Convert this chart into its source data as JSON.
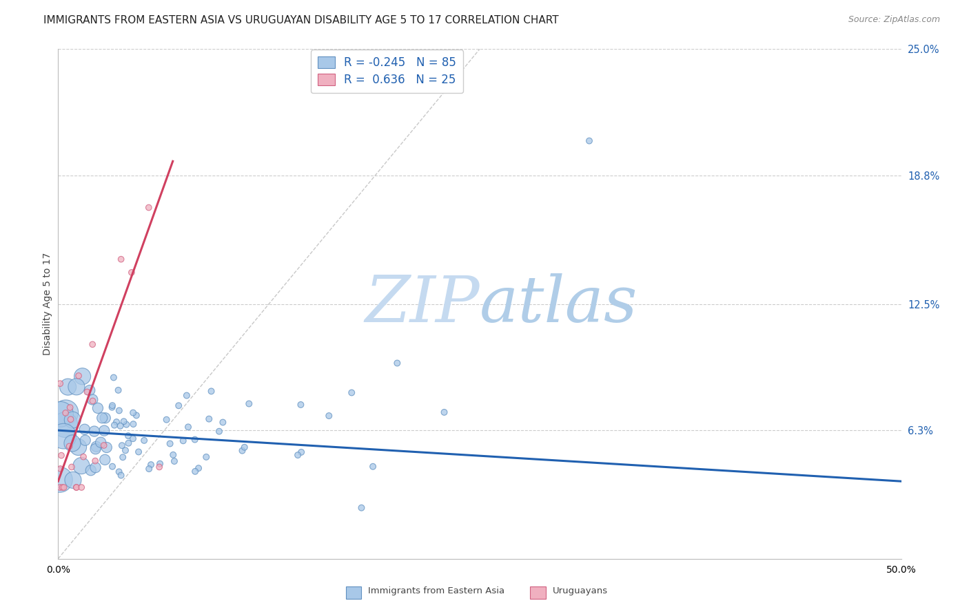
{
  "title": "IMMIGRANTS FROM EASTERN ASIA VS URUGUAYAN DISABILITY AGE 5 TO 17 CORRELATION CHART",
  "source": "Source: ZipAtlas.com",
  "ylabel": "Disability Age 5 to 17",
  "xlim": [
    0.0,
    0.5
  ],
  "ylim": [
    0.0,
    0.25
  ],
  "ytick_vals": [
    0.063,
    0.125,
    0.188,
    0.25
  ],
  "ytick_labels": [
    "6.3%",
    "12.5%",
    "18.8%",
    "25.0%"
  ],
  "xtick_vals": [
    0.0,
    0.5
  ],
  "xtick_labels": [
    "0.0%",
    "50.0%"
  ],
  "blue_R": -0.245,
  "blue_N": 85,
  "pink_R": 0.636,
  "pink_N": 25,
  "blue_color": "#a8c8e8",
  "blue_edge": "#6090c0",
  "pink_color": "#f0b0c0",
  "pink_edge": "#d06080",
  "blue_line_color": "#2060b0",
  "pink_line_color": "#d04060",
  "gray_line_color": "#c8c8c8",
  "watermark_zip": "ZIP",
  "watermark_atlas": "atlas",
  "legend_text_color": "#2060b0",
  "background_color": "#ffffff"
}
